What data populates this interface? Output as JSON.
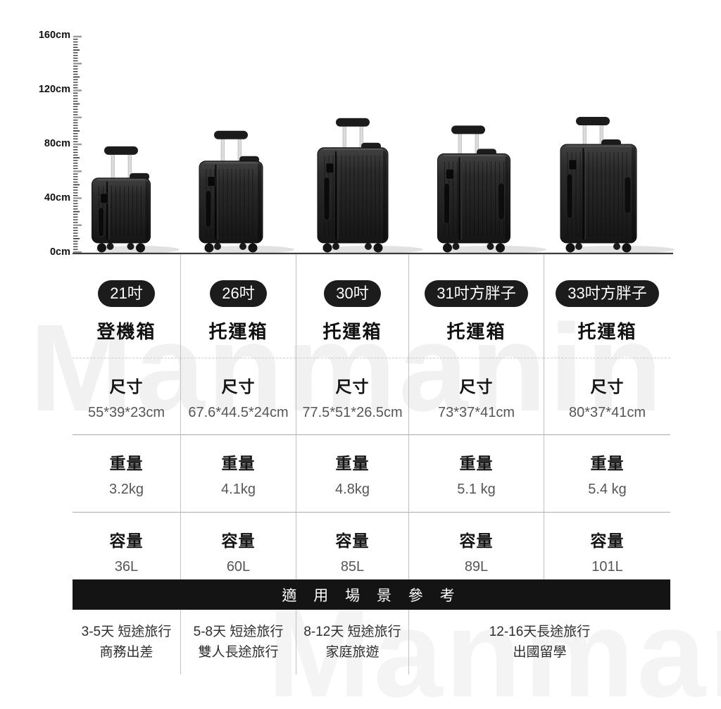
{
  "watermark": "Manmanin",
  "ruler": {
    "unit": "cm",
    "labels": [
      "160cm",
      "120cm",
      "80cm",
      "40cm",
      "0cm"
    ],
    "label_values_cm": [
      160,
      120,
      80,
      40,
      0
    ],
    "tick_step_cm": 2
  },
  "headers": {
    "size": "尺寸",
    "weight": "重量",
    "capacity": "容量"
  },
  "columns": [
    {
      "badge": "21吋",
      "type": "登機箱",
      "size": "55*39*23cm",
      "weight": "3.2kg",
      "capacity": "36L",
      "height_cm": 55
    },
    {
      "badge": "26吋",
      "type": "托運箱",
      "size": "67.6*44.5*24cm",
      "weight": "4.1kg",
      "capacity": "60L",
      "height_cm": 67.6
    },
    {
      "badge": "30吋",
      "type": "托運箱",
      "size": "77.5*51*26.5cm",
      "weight": "4.8kg",
      "capacity": "85L",
      "height_cm": 77.5
    },
    {
      "badge": "31吋方胖子",
      "type": "托運箱",
      "size": "73*37*41cm",
      "weight": "5.1 kg",
      "capacity": "89L",
      "height_cm": 73
    },
    {
      "badge": "33吋方胖子",
      "type": "托運箱",
      "size": "80*37*41cm",
      "weight": "5.4 kg",
      "capacity": "101L",
      "height_cm": 80
    }
  ],
  "banner": {
    "text": "適 用 場 景 參 考",
    "bg": "#141414",
    "fg": "#ffffff"
  },
  "scenarios": [
    {
      "line1": "3-5天 短途旅行",
      "line2": "商務出差"
    },
    {
      "line1": "5-8天 短途旅行",
      "line2": "雙人長途旅行"
    },
    {
      "line1": "8-12天 短途旅行",
      "line2": "家庭旅遊"
    },
    {
      "line1": "12-16天長途旅行",
      "line2": "出國留學"
    }
  ],
  "colors": {
    "badge_bg": "#1c1c1c",
    "badge_fg": "#ffffff",
    "banner_bg": "#141414",
    "banner_fg": "#ffffff",
    "value_text": "#565656",
    "grid_line": "#c2c2c2",
    "ground_line": "#3d3d3d",
    "suitcase_body": "#1f1f1f",
    "shadow": "#dadada"
  },
  "chart_data": {
    "type": "table",
    "axis": {
      "orientation": "vertical",
      "unit": "cm",
      "ticks": [
        0,
        40,
        80,
        120,
        160
      ]
    },
    "items": [
      {
        "size_inch": "21吋",
        "category": "登機箱",
        "dimensions": "55*39*23cm",
        "weight": "3.2kg",
        "capacity": "36L"
      },
      {
        "size_inch": "26吋",
        "category": "托運箱",
        "dimensions": "67.6*44.5*24cm",
        "weight": "4.1kg",
        "capacity": "60L"
      },
      {
        "size_inch": "30吋",
        "category": "托運箱",
        "dimensions": "77.5*51*26.5cm",
        "weight": "4.8kg",
        "capacity": "85L"
      },
      {
        "size_inch": "31吋方胖子",
        "category": "托運箱",
        "dimensions": "73*37*41cm",
        "weight": "5.1 kg",
        "capacity": "89L"
      },
      {
        "size_inch": "33吋方胖子",
        "category": "托運箱",
        "dimensions": "80*37*41cm",
        "weight": "5.4 kg",
        "capacity": "101L"
      }
    ],
    "section_header": "適 用 場 景 參 考",
    "usage_scenarios": [
      "3-5天 短途旅行 商務出差",
      "5-8天 短途旅行 雙人長途旅行",
      "8-12天 短途旅行 家庭旅遊",
      "12-16天長途旅行 出國留學"
    ]
  }
}
